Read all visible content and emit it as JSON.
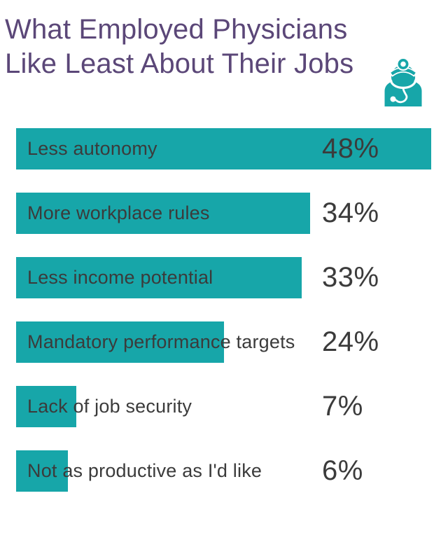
{
  "title": {
    "line1": "What Employed Physicians",
    "line2": "Like Least About Their Jobs"
  },
  "icon": {
    "name": "doctor-with-stethoscope",
    "color": "#17A6A9"
  },
  "colors": {
    "bar": "#17A6A9",
    "title": "#5B4778",
    "label": "#3B3B3B",
    "background": "#FFFFFF"
  },
  "chart_data": {
    "type": "bar",
    "orientation": "horizontal",
    "title": "What Employed Physicians Like Least About Their Jobs",
    "categories": [
      "Less autonomy",
      "More workplace rules",
      "Less income potential",
      "Mandatory performance targets",
      "Lack of job security",
      "Not as productive as I'd like"
    ],
    "values": [
      48,
      34,
      33,
      24,
      7,
      6
    ],
    "value_labels": [
      "48%",
      "34%",
      "33%",
      "24%",
      "7%",
      "6%"
    ],
    "xlim": [
      0,
      48
    ],
    "grid": false,
    "legend": false,
    "value_label_position": "left-aligned-column-right-of-bars"
  }
}
